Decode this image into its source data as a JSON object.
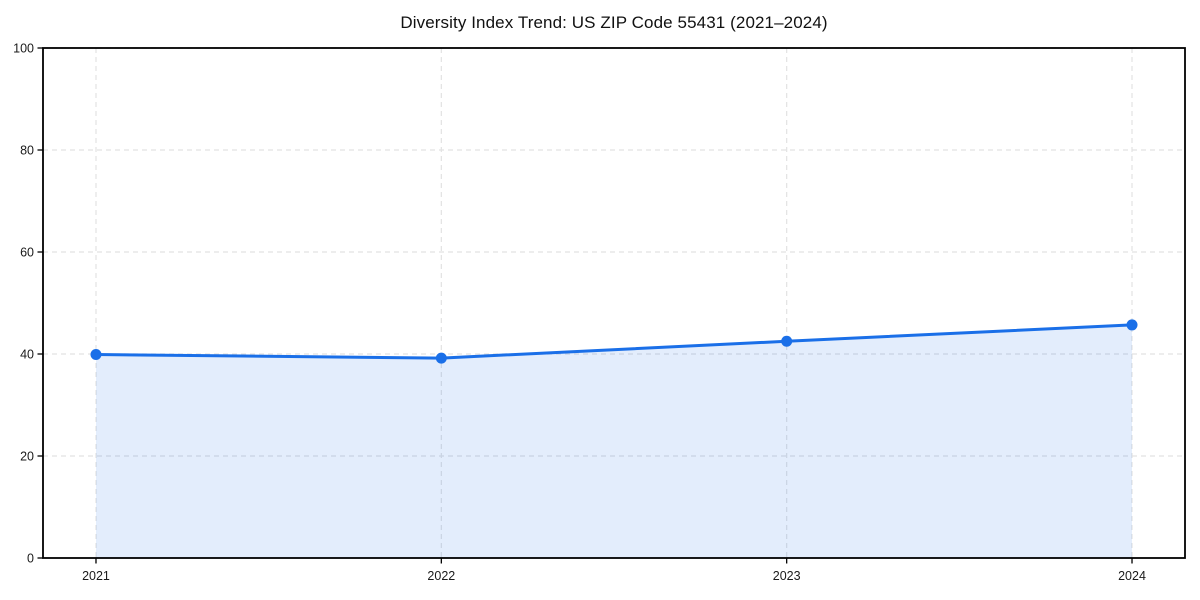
{
  "page": {
    "background": "#ffffff"
  },
  "chart_data": {
    "type": "area",
    "title": "Diversity Index Trend: US ZIP Code 55431 (2021–2024)",
    "categories": [
      "2021",
      "2022",
      "2023",
      "2024"
    ],
    "values": [
      39.9,
      39.2,
      42.5,
      45.7
    ],
    "xlabel": "",
    "ylabel": "",
    "ylim": [
      0,
      100
    ],
    "yticks": [
      0,
      20,
      40,
      60,
      80,
      100
    ],
    "grid": true,
    "grid_style": "dashed",
    "legend_position": "none",
    "marker": "circle",
    "colors": {
      "line": "#1a6fe8",
      "marker": "#1a6fe8",
      "fill": "#1a6fe8",
      "fill_opacity": 0.12,
      "grid": "#e2e2e2",
      "axis": "#000000",
      "tick_text": "#1a1a1a",
      "title_text": "#111111"
    }
  }
}
